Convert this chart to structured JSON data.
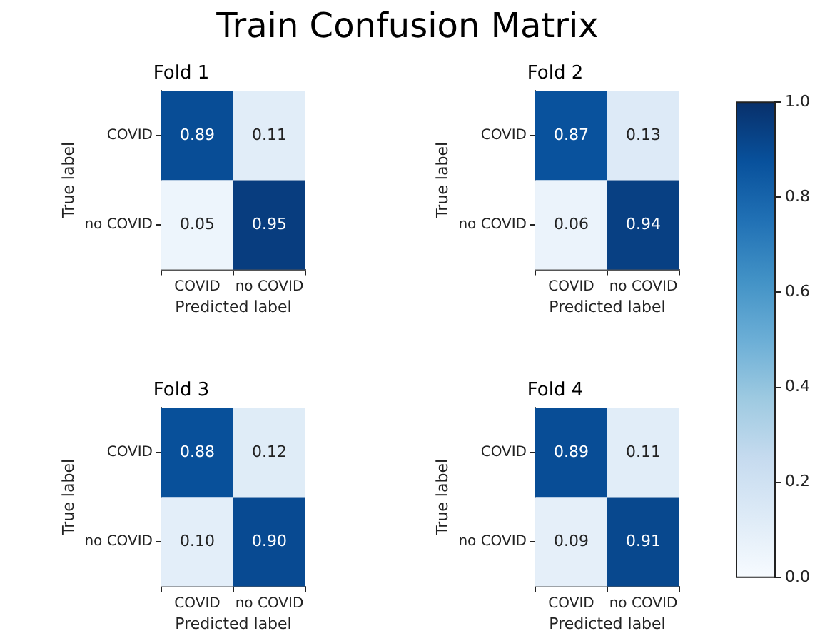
{
  "chart_data": [
    {
      "type": "other",
      "title": "Train Confusion Matrix"
    },
    {
      "type": "heatmap",
      "title": "Fold 1",
      "xlabel": "Predicted label",
      "ylabel": "True label",
      "categories": [
        "COVID",
        "no COVID"
      ],
      "y_categories": [
        "COVID",
        "no COVID"
      ],
      "cells": [
        [
          0.89,
          0.11
        ],
        [
          0.05,
          0.95
        ]
      ],
      "cell_labels": [
        [
          "0.89",
          "0.11"
        ],
        [
          "0.05",
          "0.95"
        ]
      ]
    },
    {
      "type": "heatmap",
      "title": "Fold 2",
      "xlabel": "Predicted label",
      "ylabel": "True label",
      "categories": [
        "COVID",
        "no COVID"
      ],
      "y_categories": [
        "COVID",
        "no COVID"
      ],
      "cells": [
        [
          0.87,
          0.13
        ],
        [
          0.06,
          0.94
        ]
      ],
      "cell_labels": [
        [
          "0.87",
          "0.13"
        ],
        [
          "0.06",
          "0.94"
        ]
      ]
    },
    {
      "type": "heatmap",
      "title": "Fold 3",
      "xlabel": "Predicted label",
      "ylabel": "True label",
      "categories": [
        "COVID",
        "no COVID"
      ],
      "y_categories": [
        "COVID",
        "no COVID"
      ],
      "cells": [
        [
          0.88,
          0.12
        ],
        [
          0.1,
          0.9
        ]
      ],
      "cell_labels": [
        [
          "0.88",
          "0.12"
        ],
        [
          "0.10",
          "0.90"
        ]
      ]
    },
    {
      "type": "heatmap",
      "title": "Fold 4",
      "xlabel": "Predicted label",
      "ylabel": "True label",
      "categories": [
        "COVID",
        "no COVID"
      ],
      "y_categories": [
        "COVID",
        "no COVID"
      ],
      "cells": [
        [
          0.89,
          0.11
        ],
        [
          0.09,
          0.91
        ]
      ],
      "cell_labels": [
        [
          "0.89",
          "0.11"
        ],
        [
          "0.09",
          "0.91"
        ]
      ],
      "clim": [
        0,
        1
      ],
      "cticks": [
        {
          "value": 0,
          "label": "0.0"
        },
        {
          "value": 0.2,
          "label": "0.2"
        },
        {
          "value": 0.4,
          "label": "0.4"
        },
        {
          "value": 0.6,
          "label": "0.6"
        },
        {
          "value": 0.8,
          "label": "0.8"
        },
        {
          "value": 1,
          "label": "1.0"
        }
      ]
    }
  ]
}
